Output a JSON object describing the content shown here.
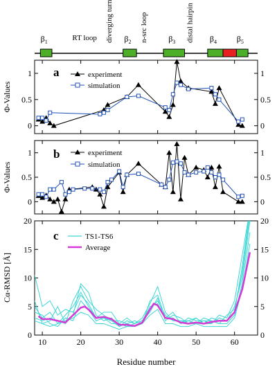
{
  "secondary_structure": {
    "strands": [
      {
        "label": "β",
        "sub": "1",
        "start": 9.5,
        "end": 12.5,
        "color": "#4caf27"
      },
      {
        "label": "β",
        "sub": "2",
        "start": 31.0,
        "end": 34.5,
        "color": "#4caf27"
      },
      {
        "label": "β",
        "sub": "3",
        "start": 41.5,
        "end": 47.0,
        "color": "#4caf27"
      },
      {
        "label": "β",
        "sub": "4",
        "start": 53.0,
        "end": 57.0,
        "color": "#4caf27"
      },
      {
        "label": "",
        "sub": "",
        "start": 57.0,
        "end": 60.5,
        "color": "#e8201e"
      },
      {
        "label": "β",
        "sub": "5",
        "start": 60.5,
        "end": 63.5,
        "color": "#4caf27"
      }
    ],
    "loop_labels": [
      "RT loop",
      "diverging turn",
      "n-src loop",
      "distal hairpin"
    ],
    "loop_positions": [
      21,
      28,
      37,
      49
    ]
  },
  "chart_data": [
    {
      "type": "line",
      "panel_label": "a",
      "ylabel": "Φ-Values",
      "xlim": [
        8,
        66
      ],
      "ylim": [
        -0.15,
        1.25
      ],
      "yticks": [
        "0",
        "0.5",
        "1"
      ],
      "ytick_values": [
        0,
        0.5,
        1
      ],
      "legend_position": "top-center",
      "series": [
        {
          "name": "experiment",
          "color": "#000000",
          "marker": "triangle",
          "x": [
            9,
            10,
            11,
            12,
            13,
            26,
            27,
            32,
            35,
            42,
            43,
            44,
            45,
            46,
            48,
            54,
            55,
            56,
            61,
            62
          ],
          "y": [
            0.12,
            0.08,
            0.15,
            0.05,
            0.0,
            0.3,
            0.4,
            0.55,
            0.78,
            0.27,
            0.17,
            0.4,
            1.22,
            0.85,
            0.72,
            0.65,
            0.42,
            0.72,
            0.02,
            0.0
          ]
        },
        {
          "name": "simulation",
          "color": "#1f4fb5",
          "marker": "square",
          "x": [
            9,
            10,
            11,
            12,
            25,
            26,
            27,
            32,
            35,
            42,
            43,
            44,
            45,
            46,
            48,
            54,
            55,
            56,
            61,
            62
          ],
          "y": [
            0.15,
            0.15,
            0.1,
            0.25,
            0.22,
            0.25,
            0.3,
            0.55,
            0.57,
            0.35,
            0.3,
            0.6,
            0.82,
            0.78,
            0.7,
            0.72,
            0.6,
            0.5,
            0.08,
            0.12
          ]
        }
      ]
    },
    {
      "type": "line",
      "panel_label": "b",
      "ylabel": "Φ-Values",
      "xlim": [
        8,
        66
      ],
      "ylim": [
        -0.25,
        1.25
      ],
      "yticks": [
        "0",
        "0.5",
        "1"
      ],
      "ytick_values": [
        0,
        0.5,
        1
      ],
      "legend_position": "top-center",
      "series": [
        {
          "name": "experiment",
          "color": "#000000",
          "marker": "triangle",
          "x": [
            9,
            10,
            11,
            12,
            13,
            14,
            15,
            16,
            17,
            23,
            24,
            25,
            26,
            27,
            30,
            31,
            32,
            35,
            41,
            42,
            43,
            44,
            45,
            46,
            47,
            48,
            50,
            52,
            53,
            54,
            55,
            56,
            57,
            61,
            62
          ],
          "y": [
            0.12,
            0.08,
            0.13,
            0.05,
            0.0,
            0.05,
            -0.2,
            0.05,
            0.25,
            0.3,
            0.25,
            0.15,
            -0.1,
            0.3,
            0.6,
            0.2,
            0.55,
            0.78,
            0.35,
            0.3,
            1.0,
            0.2,
            1.18,
            0.05,
            0.9,
            0.55,
            0.7,
            0.65,
            0.5,
            0.7,
            0.3,
            0.72,
            0.2,
            0.0,
            0.0
          ]
        },
        {
          "name": "simulation",
          "color": "#1f4fb5",
          "marker": "square",
          "x": [
            9,
            10,
            11,
            12,
            13,
            15,
            16,
            17,
            18,
            21,
            23,
            25,
            26,
            27,
            28,
            30,
            31,
            32,
            35,
            41,
            42,
            43,
            44,
            45,
            46,
            47,
            48,
            50,
            52,
            53,
            54,
            55,
            56,
            57,
            61,
            62
          ],
          "y": [
            0.15,
            0.15,
            0.1,
            0.25,
            0.25,
            0.4,
            0.15,
            0.2,
            0.25,
            0.27,
            0.27,
            0.25,
            0.2,
            0.4,
            0.45,
            0.62,
            0.3,
            0.55,
            0.57,
            0.35,
            0.3,
            0.45,
            0.8,
            0.82,
            0.78,
            0.6,
            0.55,
            0.6,
            0.62,
            0.7,
            0.6,
            0.5,
            0.55,
            0.45,
            0.1,
            0.12
          ]
        }
      ]
    },
    {
      "type": "line",
      "panel_label": "c",
      "xlabel": "Residue number",
      "ylabel": "Cα-RMSD [Å]",
      "xlim": [
        8,
        66
      ],
      "ylim": [
        0,
        20
      ],
      "xticks": [
        "10",
        "20",
        "30",
        "40",
        "50",
        "60"
      ],
      "xtick_values": [
        10,
        20,
        30,
        40,
        50,
        60
      ],
      "yticks": [
        "0",
        "5",
        "10",
        "15",
        "20"
      ],
      "ytick_values": [
        0,
        5,
        10,
        15,
        20
      ],
      "legend_position": "top-left",
      "series": [
        {
          "name": "TS1-TS6",
          "color": "#3fd6d6",
          "is_group": true,
          "x": [
            8,
            10,
            12,
            14,
            16,
            18,
            20,
            22,
            24,
            26,
            28,
            30,
            32,
            34,
            36,
            38,
            40,
            42,
            44,
            46,
            48,
            50,
            52,
            54,
            56,
            58,
            60,
            62,
            64
          ],
          "lines": [
            [
              10.5,
              5.0,
              6.0,
              3.5,
              4.5,
              4.0,
              7.0,
              5.5,
              3.0,
              4.0,
              4.0,
              2.0,
              3.0,
              2.0,
              3.0,
              5.5,
              8.5,
              4.0,
              2.5,
              2.5,
              2.0,
              3.0,
              2.0,
              3.0,
              2.5,
              2.5,
              4.0,
              12.0,
              22.0
            ],
            [
              6.0,
              2.0,
              2.5,
              5.0,
              2.0,
              3.5,
              9.0,
              7.5,
              3.5,
              2.5,
              3.0,
              1.5,
              2.0,
              2.5,
              2.0,
              6.0,
              7.0,
              3.0,
              4.0,
              2.0,
              3.0,
              2.5,
              2.5,
              2.0,
              3.0,
              2.5,
              5.0,
              10.0,
              20.0
            ],
            [
              4.0,
              3.5,
              2.0,
              1.5,
              3.0,
              2.5,
              6.0,
              4.5,
              2.5,
              3.0,
              2.0,
              2.0,
              1.5,
              2.0,
              2.5,
              4.0,
              6.5,
              2.5,
              3.5,
              3.0,
              2.0,
              2.0,
              3.0,
              2.5,
              2.0,
              2.0,
              3.5,
              9.0,
              18.0
            ],
            [
              3.0,
              2.5,
              3.0,
              2.5,
              2.0,
              6.0,
              8.5,
              6.0,
              4.5,
              3.5,
              2.5,
              2.5,
              2.0,
              1.5,
              2.0,
              4.5,
              6.0,
              3.5,
              2.5,
              2.5,
              2.5,
              3.0,
              2.0,
              2.0,
              3.5,
              3.0,
              6.0,
              14.0,
              22.0
            ],
            [
              2.5,
              2.0,
              1.5,
              2.0,
              2.5,
              3.0,
              4.0,
              3.5,
              2.0,
              2.0,
              1.5,
              1.0,
              1.5,
              1.5,
              2.0,
              3.5,
              4.5,
              2.0,
              2.0,
              1.5,
              1.5,
              2.0,
              1.5,
              1.5,
              1.5,
              1.5,
              3.0,
              8.0,
              16.0
            ],
            [
              5.0,
              3.0,
              4.0,
              2.0,
              3.5,
              5.0,
              7.5,
              5.0,
              3.0,
              3.0,
              2.5,
              1.5,
              2.5,
              2.0,
              2.5,
              5.0,
              5.5,
              3.0,
              3.0,
              2.0,
              2.5,
              2.0,
              2.5,
              2.5,
              2.0,
              3.5,
              4.5,
              11.0,
              21.0
            ]
          ]
        },
        {
          "name": "Average",
          "color": "#d63ad6",
          "x": [
            9,
            10,
            12,
            14,
            16,
            18,
            20,
            21,
            22,
            24,
            26,
            28,
            30,
            32,
            34,
            36,
            38,
            39,
            40,
            42,
            44,
            46,
            48,
            50,
            52,
            54,
            56,
            58,
            60,
            62,
            64
          ],
          "y": [
            3.3,
            2.8,
            2.8,
            2.5,
            2.2,
            3.5,
            4.8,
            5.0,
            4.5,
            3.0,
            3.2,
            2.8,
            1.8,
            1.8,
            1.6,
            2.2,
            4.5,
            5.5,
            5.2,
            3.0,
            2.8,
            2.2,
            2.0,
            2.2,
            2.0,
            2.3,
            2.5,
            2.5,
            4.0,
            8.0,
            14.5
          ]
        }
      ]
    }
  ]
}
